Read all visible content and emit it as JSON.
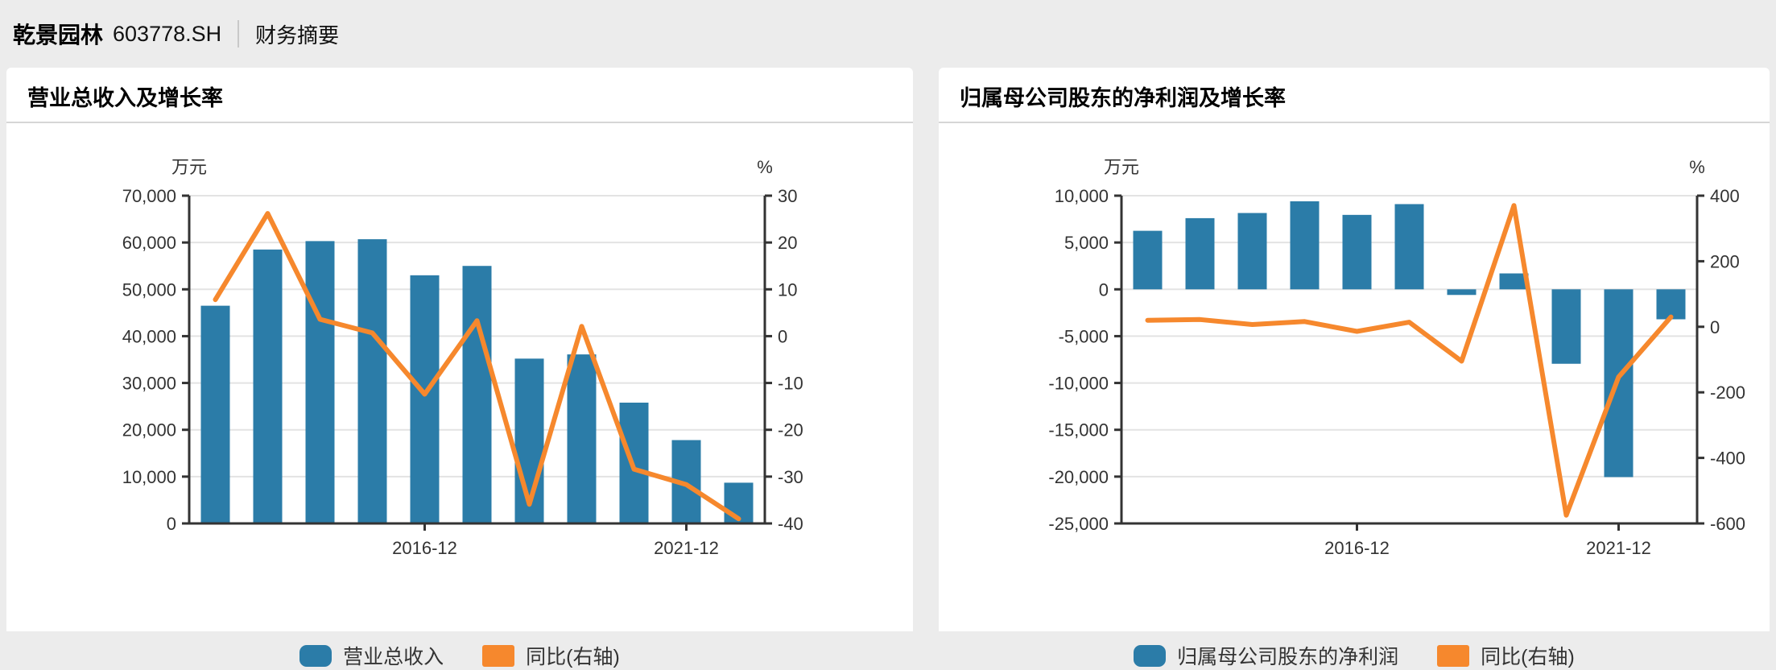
{
  "header": {
    "company": "乾景园林",
    "ticker": "603778.SH",
    "section": "财务摘要"
  },
  "colors": {
    "bar": "#2b7ca8",
    "line": "#f6882d",
    "background": "#ececec",
    "card": "#ffffff",
    "grid": "#e3e3e3",
    "axis": "#333333",
    "tick_text": "#333333"
  },
  "cards": [
    {
      "title": "营业总收入及增长率",
      "chart_data": {
        "type": "bar-line",
        "unit_left": "万元",
        "unit_right": "%",
        "categories_count": 11,
        "x_ticks": [
          {
            "index": 4,
            "label": "2016-12"
          },
          {
            "index": 9,
            "label": "2021-12"
          }
        ],
        "left_axis": {
          "min": 0,
          "max": 70000,
          "step": 10000,
          "tick_labels": [
            "0",
            "10,000",
            "20,000",
            "30,000",
            "40,000",
            "50,000",
            "60,000",
            "70,000"
          ]
        },
        "right_axis": {
          "min": -40,
          "max": 30,
          "step": 10,
          "tick_labels": [
            "-40",
            "-30",
            "-20",
            "-10",
            "0",
            "10",
            "20",
            "30"
          ]
        },
        "series": [
          {
            "name": "营业总收入",
            "type": "bar",
            "axis": "left",
            "color": "#2b7ca8",
            "values": [
              46500,
              58500,
              60300,
              60700,
              53000,
              55000,
              35200,
              36100,
              25800,
              17800,
              8700
            ]
          },
          {
            "name": "同比(右轴)",
            "type": "line",
            "axis": "right",
            "color": "#f6882d",
            "values": [
              7.8,
              26.2,
              3.6,
              0.7,
              -12.4,
              3.3,
              -35.9,
              2.1,
              -28.4,
              -31.7,
              -39
            ]
          }
        ],
        "legend_position": "bottom",
        "grid": "horizontal"
      }
    },
    {
      "title": "归属母公司股东的净利润及增长率",
      "chart_data": {
        "type": "bar-line",
        "unit_left": "万元",
        "unit_right": "%",
        "categories_count": 11,
        "x_ticks": [
          {
            "index": 4,
            "label": "2016-12"
          },
          {
            "index": 9,
            "label": "2021-12"
          }
        ],
        "left_axis": {
          "min": -25000,
          "max": 10000,
          "step": 5000,
          "tick_labels": [
            "-25,000",
            "-20,000",
            "-15,000",
            "-10,000",
            "-5,000",
            "0",
            "5,000",
            "10,000"
          ]
        },
        "right_axis": {
          "min": -600,
          "max": 400,
          "step": 200,
          "tick_labels": [
            "-600",
            "-400",
            "-200",
            "0",
            "200",
            "400"
          ]
        },
        "series": [
          {
            "name": "归属母公司股东的净利润",
            "type": "bar",
            "axis": "left",
            "color": "#2b7ca8",
            "values": [
              6250,
              7600,
              8150,
              9400,
              7950,
              9100,
              -600,
              1700,
              -7950,
              -20050,
              -3200
            ]
          },
          {
            "name": "同比(右轴)",
            "type": "line",
            "axis": "right",
            "color": "#f6882d",
            "values": [
              20,
              22,
              7,
              16,
              -14,
              14,
              -105,
              370,
              -575,
              -153,
              30
            ]
          }
        ],
        "legend_position": "bottom",
        "grid": "horizontal"
      }
    }
  ]
}
